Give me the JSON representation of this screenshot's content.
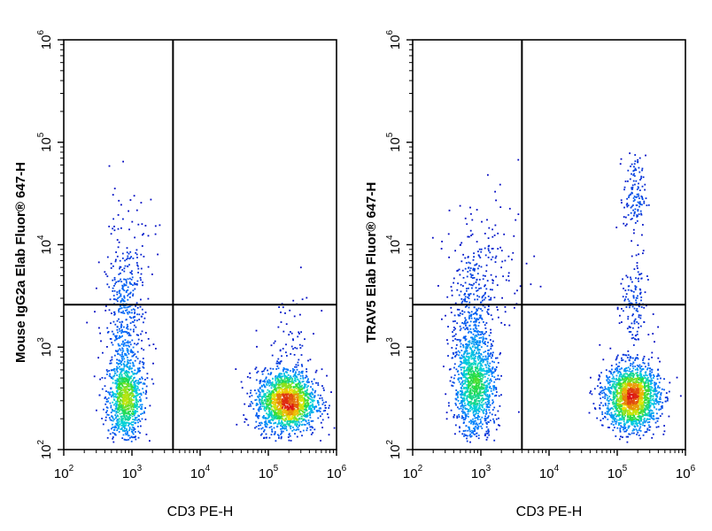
{
  "chart_data": [
    {
      "type": "scatter",
      "title": "",
      "xlabel": "CD3 PE-H",
      "ylabel": "Mouse IgG2a Elab Fluor® 647-H",
      "xscale": "log",
      "yscale": "log",
      "xlim": [
        100,
        1000000
      ],
      "ylim": [
        100,
        1000000
      ],
      "x_ticks": [
        "10^2",
        "10^3",
        "10^4",
        "10^5",
        "10^6"
      ],
      "y_ticks": [
        "10^2",
        "10^3",
        "10^4",
        "10^5",
        "10^6"
      ],
      "gates": {
        "x": 4000,
        "y": 2600
      },
      "grid": false,
      "series": [
        {
          "values": [
            {
              "x": 780,
              "y": 310,
              "n": 900,
              "sx": 0.13,
              "sy": 0.2
            },
            {
              "x": 780,
              "y": 1500,
              "n": 450,
              "sx": 0.15,
              "sy": 0.45
            },
            {
              "x": 900,
              "y": 8000,
              "n": 60,
              "sx": 0.2,
              "sy": 0.35
            },
            {
              "x": 180000,
              "y": 300,
              "n": 1700,
              "sx": 0.22,
              "sy": 0.15
            },
            {
              "x": 200000,
              "y": 900,
              "n": 80,
              "sx": 0.2,
              "sy": 0.3
            }
          ]
        }
      ]
    },
    {
      "type": "scatter",
      "title": "",
      "xlabel": "CD3 PE-H",
      "ylabel": "TRAV5 Elab Fluor® 647-H",
      "xscale": "log",
      "yscale": "log",
      "xlim": [
        100,
        1000000
      ],
      "ylim": [
        100,
        1000000
      ],
      "x_ticks": [
        "10^2",
        "10^3",
        "10^4",
        "10^5",
        "10^6"
      ],
      "y_ticks": [
        "10^2",
        "10^3",
        "10^4",
        "10^5",
        "10^6"
      ],
      "gates": {
        "x": 4000,
        "y": 2600
      },
      "grid": false,
      "series": [
        {
          "values": [
            {
              "x": 800,
              "y": 400,
              "n": 1100,
              "sx": 0.15,
              "sy": 0.25
            },
            {
              "x": 750,
              "y": 1800,
              "n": 450,
              "sx": 0.17,
              "sy": 0.4
            },
            {
              "x": 1500,
              "y": 7000,
              "n": 80,
              "sx": 0.3,
              "sy": 0.3
            },
            {
              "x": 160000,
              "y": 330,
              "n": 1800,
              "sx": 0.2,
              "sy": 0.16
            },
            {
              "x": 170000,
              "y": 2500,
              "n": 140,
              "sx": 0.1,
              "sy": 0.25
            },
            {
              "x": 175000,
              "y": 30000,
              "n": 130,
              "sx": 0.08,
              "sy": 0.2
            }
          ]
        }
      ]
    }
  ]
}
